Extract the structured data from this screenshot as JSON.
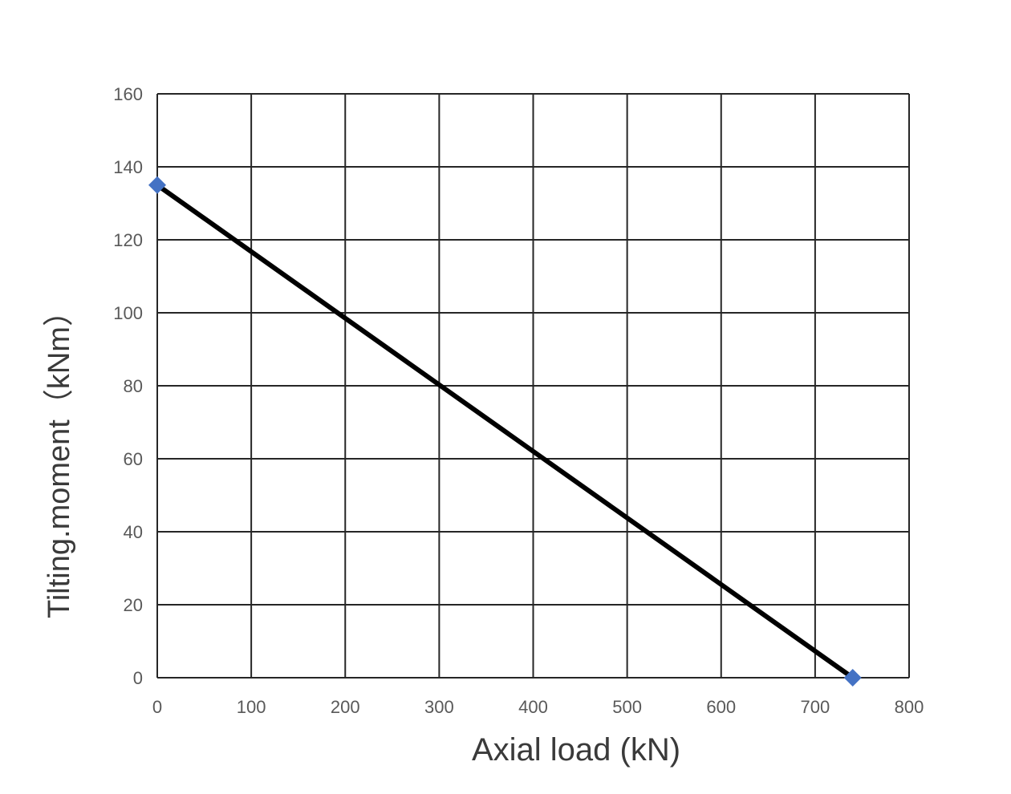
{
  "chart_data": {
    "type": "line",
    "title": "",
    "xlabel": "Axial load (kN)",
    "ylabel": "Tilting.moment（kNm）",
    "xlim": [
      0,
      800
    ],
    "ylim": [
      0,
      160
    ],
    "x_ticks": [
      "0",
      "100",
      "200",
      "300",
      "400",
      "500",
      "600",
      "700",
      "800"
    ],
    "y_ticks": [
      "0",
      "20",
      "40",
      "60",
      "80",
      "100",
      "120",
      "140",
      "160"
    ],
    "grid": true,
    "series": [
      {
        "x": [
          0,
          740
        ],
        "y": [
          135,
          0
        ],
        "line_color": "#000000",
        "marker": "diamond",
        "marker_color": "#4472c4"
      }
    ]
  }
}
